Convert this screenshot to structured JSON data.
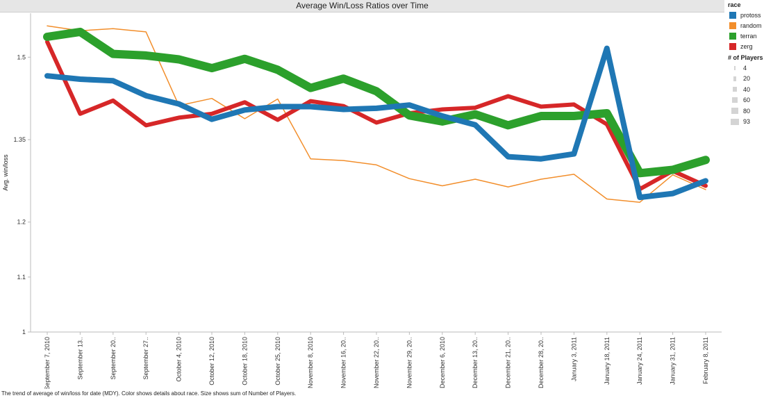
{
  "chart_data": {
    "type": "line",
    "title": "Average Win/Loss Ratios over Time",
    "xlabel": "",
    "ylabel": "Avg. win/loss",
    "categories": [
      "September 7, 2010",
      "September 13..",
      "September 20..",
      "September 27..",
      "October 4, 2010",
      "October 12, 2010",
      "October 18, 2010",
      "October 25, 2010",
      "November 8, 2010",
      "November 16, 20..",
      "November 22, 20..",
      "November 29, 20..",
      "December 6, 2010",
      "December 13, 20..",
      "December 21, 20..",
      "December 28, 20..",
      "January 3, 2011",
      "January 18, 2011",
      "January 24, 2011",
      "January 31, 2011",
      "February 8, 2011"
    ],
    "yticks": [
      "1",
      "1.1",
      "1.2",
      "1.35",
      "1.5"
    ],
    "ylim": [
      1.0,
      1.58
    ],
    "grid": false,
    "legend_position": "right",
    "series": [
      {
        "name": "random",
        "color": "#f28e2b",
        "width": 1.5,
        "values": [
          1.557,
          1.548,
          1.552,
          1.546,
          1.412,
          1.425,
          1.388,
          1.424,
          1.315,
          1.312,
          1.304,
          1.279,
          1.266,
          1.278,
          1.264,
          1.278,
          1.287,
          1.242,
          1.236,
          1.286,
          1.259
        ]
      },
      {
        "name": "zerg",
        "color": "#d62728",
        "width": 6,
        "values": [
          1.528,
          1.397,
          1.421,
          1.376,
          1.39,
          1.397,
          1.418,
          1.386,
          1.42,
          1.411,
          1.381,
          1.398,
          1.405,
          1.408,
          1.429,
          1.41,
          1.414,
          1.378,
          1.26,
          1.293,
          1.266
        ]
      },
      {
        "name": "terran",
        "color": "#2ca02c",
        "width": 12,
        "values": [
          1.537,
          1.546,
          1.506,
          1.503,
          1.496,
          1.48,
          1.497,
          1.477,
          1.444,
          1.461,
          1.438,
          1.394,
          1.383,
          1.396,
          1.376,
          1.393,
          1.393,
          1.398,
          1.289,
          1.295,
          1.313
        ]
      },
      {
        "name": "protoss",
        "color": "#1f77b4",
        "width": 8,
        "values": [
          1.466,
          1.46,
          1.457,
          1.43,
          1.415,
          1.387,
          1.404,
          1.41,
          1.41,
          1.405,
          1.407,
          1.413,
          1.393,
          1.377,
          1.319,
          1.315,
          1.324,
          1.516,
          1.245,
          1.252,
          1.275
        ]
      }
    ]
  },
  "legend": {
    "color_title": "race",
    "colors": [
      {
        "label": "protoss",
        "color": "#1f77b4"
      },
      {
        "label": "random",
        "color": "#f28e2b"
      },
      {
        "label": "terran",
        "color": "#2ca02c"
      },
      {
        "label": "zerg",
        "color": "#d62728"
      }
    ],
    "size_title": "# of Players",
    "sizes": [
      {
        "label": "4",
        "value": 4
      },
      {
        "label": "20",
        "value": 20
      },
      {
        "label": "40",
        "value": 40
      },
      {
        "label": "60",
        "value": 60
      },
      {
        "label": "80",
        "value": 80
      },
      {
        "label": "93",
        "value": 93
      }
    ]
  },
  "footnote": "The trend of average of win/loss for date (MDY).  Color shows details about race.  Size shows sum of Number of Players."
}
